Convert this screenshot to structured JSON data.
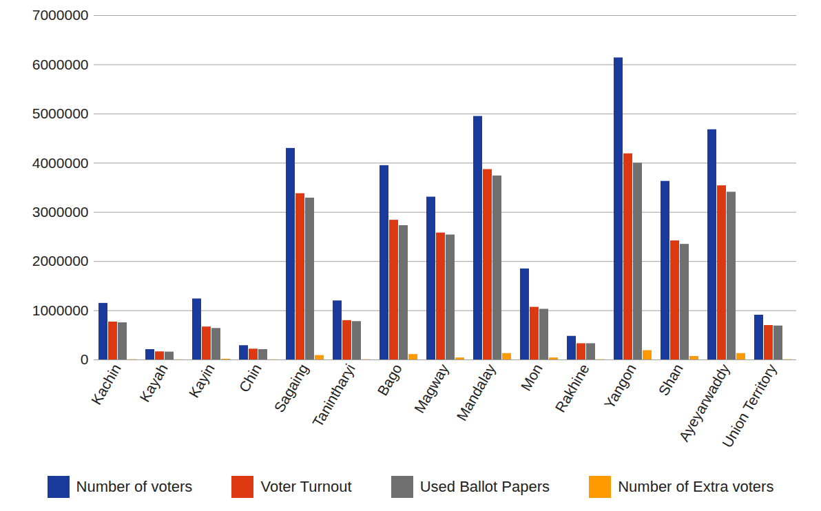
{
  "chart_data": {
    "type": "bar",
    "categories": [
      "Kachin",
      "Kayah",
      "Kayin",
      "Chin",
      "Sagaing",
      "Tanintharyi",
      "Bago",
      "Magway",
      "Mandalay",
      "Mon",
      "Rakhine",
      "Yangon",
      "Shan",
      "Ayeyarwaddy",
      "Union Territory"
    ],
    "series": [
      {
        "name": "Number of voters",
        "color": "#1a3a9c",
        "values": [
          1150000,
          210000,
          1240000,
          290000,
          4300000,
          1200000,
          3950000,
          3310000,
          4950000,
          1850000,
          480000,
          6140000,
          3630000,
          4680000,
          910000
        ]
      },
      {
        "name": "Voter Turnout",
        "color": "#dc3912",
        "values": [
          770000,
          165000,
          670000,
          220000,
          3380000,
          800000,
          2840000,
          2580000,
          3870000,
          1070000,
          330000,
          4190000,
          2420000,
          3540000,
          700000
        ]
      },
      {
        "name": "Used Ballot Papers",
        "color": "#707070",
        "values": [
          755000,
          160000,
          640000,
          210000,
          3290000,
          780000,
          2730000,
          2540000,
          3740000,
          1030000,
          330000,
          4000000,
          2350000,
          3410000,
          690000
        ]
      },
      {
        "name": "Number of Extra voters",
        "color": "#ff9900",
        "values": [
          5000,
          3000,
          15000,
          3000,
          90000,
          5000,
          110000,
          40000,
          130000,
          40000,
          5000,
          190000,
          70000,
          130000,
          5000
        ]
      }
    ],
    "ylim": [
      0,
      7000000
    ],
    "yticks": [
      0,
      1000000,
      2000000,
      3000000,
      4000000,
      5000000,
      6000000,
      7000000
    ],
    "grid": true,
    "legend": "bottom"
  }
}
